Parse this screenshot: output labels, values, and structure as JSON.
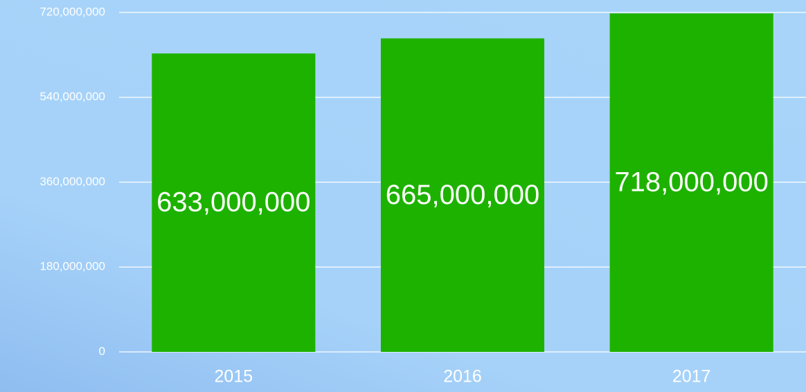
{
  "chart_data": {
    "type": "bar",
    "categories": [
      "2015",
      "2016",
      "2017"
    ],
    "values": [
      633000000,
      665000000,
      718000000
    ],
    "value_labels": [
      "633,000,000",
      "665,000,000",
      "718,000,000"
    ],
    "color": "#1eb200",
    "ylim": [
      0,
      720000000
    ],
    "yticks": [
      0,
      {
        "value": 180000000,
        "label": "180,000,000"
      },
      {
        "value": 360000000,
        "label": "360,000,000"
      },
      {
        "value": 540000000,
        "label": "540,000,000"
      },
      {
        "value": 720000000,
        "label": "720,000,000"
      }
    ],
    "grid": true
  }
}
